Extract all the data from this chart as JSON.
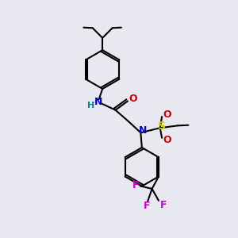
{
  "bg_color": "#e8e8f0",
  "bond_color": "#000000",
  "bond_width": 1.5,
  "atom_colors": {
    "N": "#0000cc",
    "O": "#cc0000",
    "S": "#cccc00",
    "F": "#cc00cc",
    "H": "#008888",
    "C": "#000000"
  },
  "font_size": 8
}
